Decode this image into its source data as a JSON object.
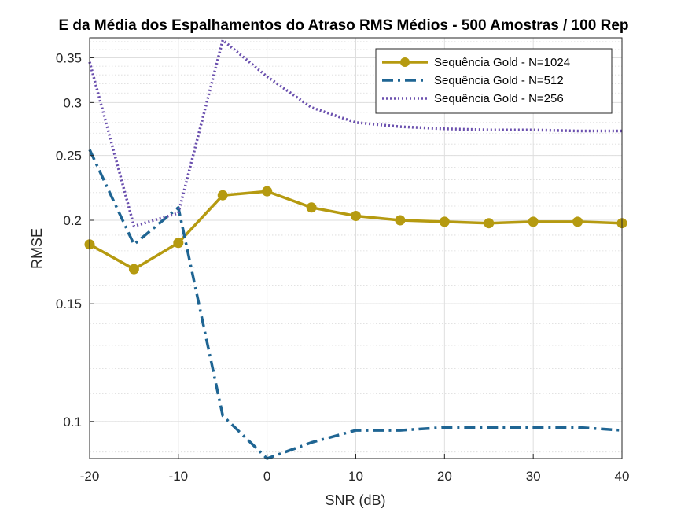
{
  "chart_data": {
    "type": "line",
    "title": "E da Média dos Espalhamentos do Atraso RMS Médios - 500 Amostras / 100 Rep",
    "xlabel": "SNR (dB)",
    "ylabel": "RMSE",
    "xlim": [
      -20,
      40
    ],
    "ylim": [
      0.088,
      0.375
    ],
    "yscale": "log",
    "grid": true,
    "minor_grid": true,
    "legend_position": "top-right",
    "x_ticks": [
      -20,
      -10,
      0,
      10,
      20,
      30,
      40
    ],
    "x_tick_labels": [
      "-20",
      "-10",
      "0",
      "10",
      "20",
      "30",
      "40"
    ],
    "y_ticks": [
      0.1,
      0.15,
      0.2,
      0.25,
      0.3,
      0.35
    ],
    "y_tick_labels": [
      "0.1",
      "0.15",
      "0.2",
      "0.25",
      "0.3",
      "0.35"
    ],
    "x": [
      -20,
      -15,
      -10,
      -5,
      0,
      5,
      10,
      15,
      20,
      25,
      30,
      35,
      40
    ],
    "series": [
      {
        "name": "Sequência Gold - N=1024",
        "color": "#B59A10",
        "style": "solid-marker",
        "values": [
          0.184,
          0.169,
          0.185,
          0.218,
          0.221,
          0.209,
          0.203,
          0.2,
          0.199,
          0.198,
          0.199,
          0.199,
          0.198
        ]
      },
      {
        "name": "Sequência Gold - N=512",
        "color": "#1F6593",
        "style": "dashdot",
        "values": [
          0.255,
          0.184,
          0.209,
          0.102,
          0.088,
          0.093,
          0.097,
          0.097,
          0.098,
          0.098,
          0.098,
          0.098,
          0.097
        ]
      },
      {
        "name": "Sequência Gold - N=256",
        "color": "#6A4FAE",
        "style": "dotted",
        "values": [
          0.345,
          0.196,
          0.205,
          0.372,
          0.328,
          0.295,
          0.28,
          0.276,
          0.274,
          0.273,
          0.273,
          0.272,
          0.272
        ]
      }
    ]
  }
}
